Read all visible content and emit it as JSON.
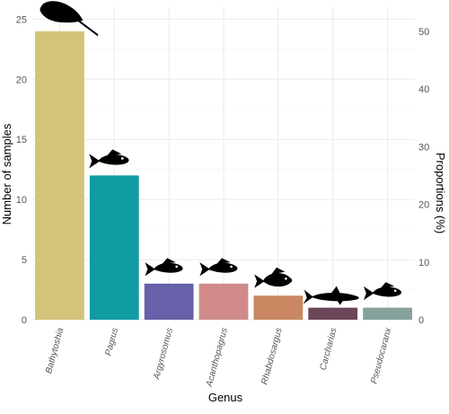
{
  "chart_data": {
    "type": "bar",
    "categories": [
      "Bathytoshia",
      "Pagrus",
      "Argyrosomus",
      "Acanthopagrus",
      "Rhabdosargus",
      "Carcharias",
      "Pseudocaranx"
    ],
    "values": [
      24,
      12,
      3,
      3,
      2,
      1,
      1
    ],
    "colors": [
      "#D4C47A",
      "#119BA3",
      "#6661A8",
      "#D08A8A",
      "#C98862",
      "#6B4658",
      "#86A29C"
    ],
    "icons": [
      "stingray-icon",
      "fish-icon",
      "fish-icon",
      "fish-icon",
      "fish-icon",
      "shark-icon",
      "fish-icon"
    ],
    "xlabel": "Genus",
    "ylabel": "Number of samples",
    "y2label": "Proportions (%)",
    "ylim": [
      0,
      26
    ],
    "y2lim": [
      0,
      54.17
    ],
    "yticks": [
      0,
      5,
      10,
      15,
      20,
      25
    ],
    "y2ticks": [
      0,
      10,
      20,
      30,
      40,
      50
    ],
    "grid": true
  }
}
